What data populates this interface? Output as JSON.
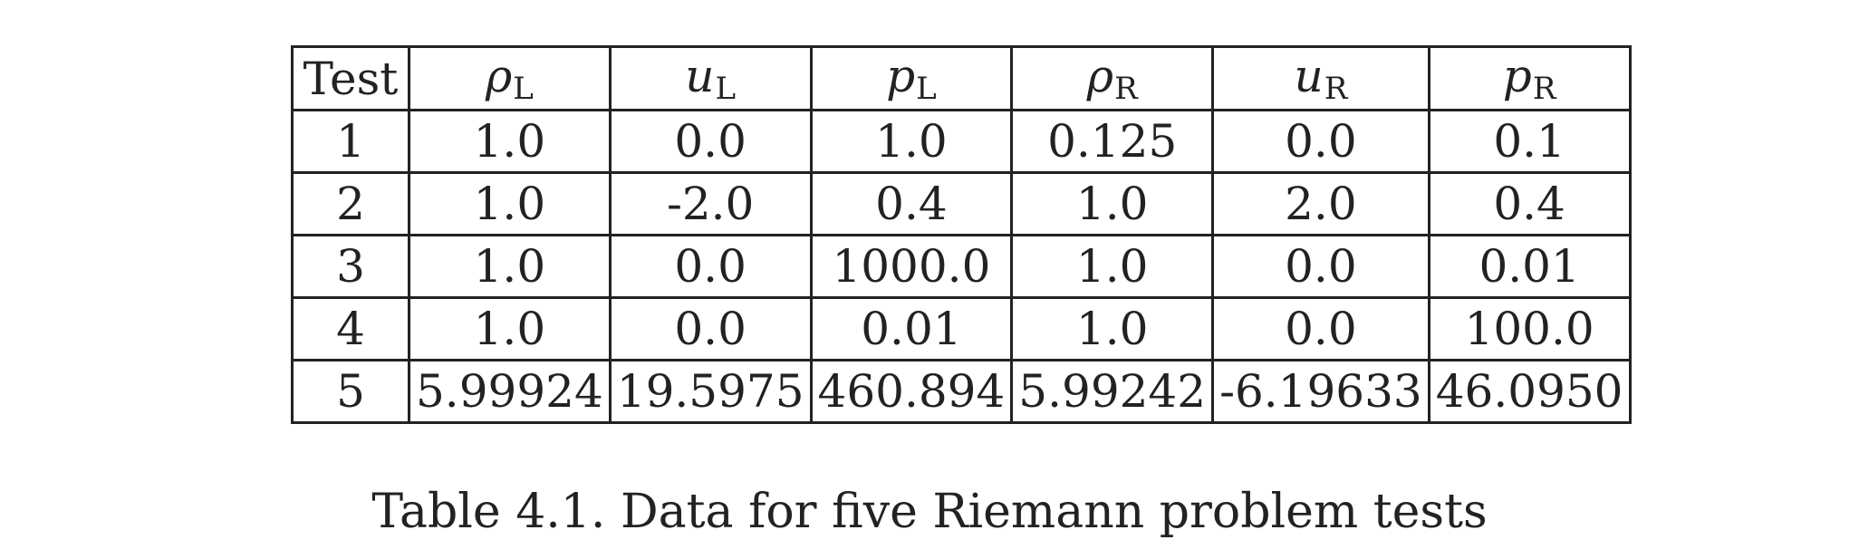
{
  "table": {
    "columns": [
      {
        "text": "Test",
        "symbol": "",
        "subscript": ""
      },
      {
        "text": "",
        "symbol": "ρ",
        "subscript": "L"
      },
      {
        "text": "",
        "symbol": "u",
        "subscript": "L"
      },
      {
        "text": "",
        "symbol": "p",
        "subscript": "L"
      },
      {
        "text": "",
        "symbol": "ρ",
        "subscript": "R"
      },
      {
        "text": "",
        "symbol": "u",
        "subscript": "R"
      },
      {
        "text": "",
        "symbol": "p",
        "subscript": "R"
      }
    ],
    "rows": [
      [
        "1",
        "1.0",
        "0.0",
        "1.0",
        "0.125",
        "0.0",
        "0.1"
      ],
      [
        "2",
        "1.0",
        "-2.0",
        "0.4",
        "1.0",
        "2.0",
        "0.4"
      ],
      [
        "3",
        "1.0",
        "0.0",
        "1000.0",
        "1.0",
        "0.0",
        "0.01"
      ],
      [
        "4",
        "1.0",
        "0.0",
        "0.01",
        "1.0",
        "0.0",
        "100.0"
      ],
      [
        "5",
        "5.99924",
        "19.5975",
        "460.894",
        "5.99242",
        "-6.19633",
        "46.0950"
      ]
    ]
  },
  "caption": "Table 4.1. Data for five Riemann problem tests"
}
